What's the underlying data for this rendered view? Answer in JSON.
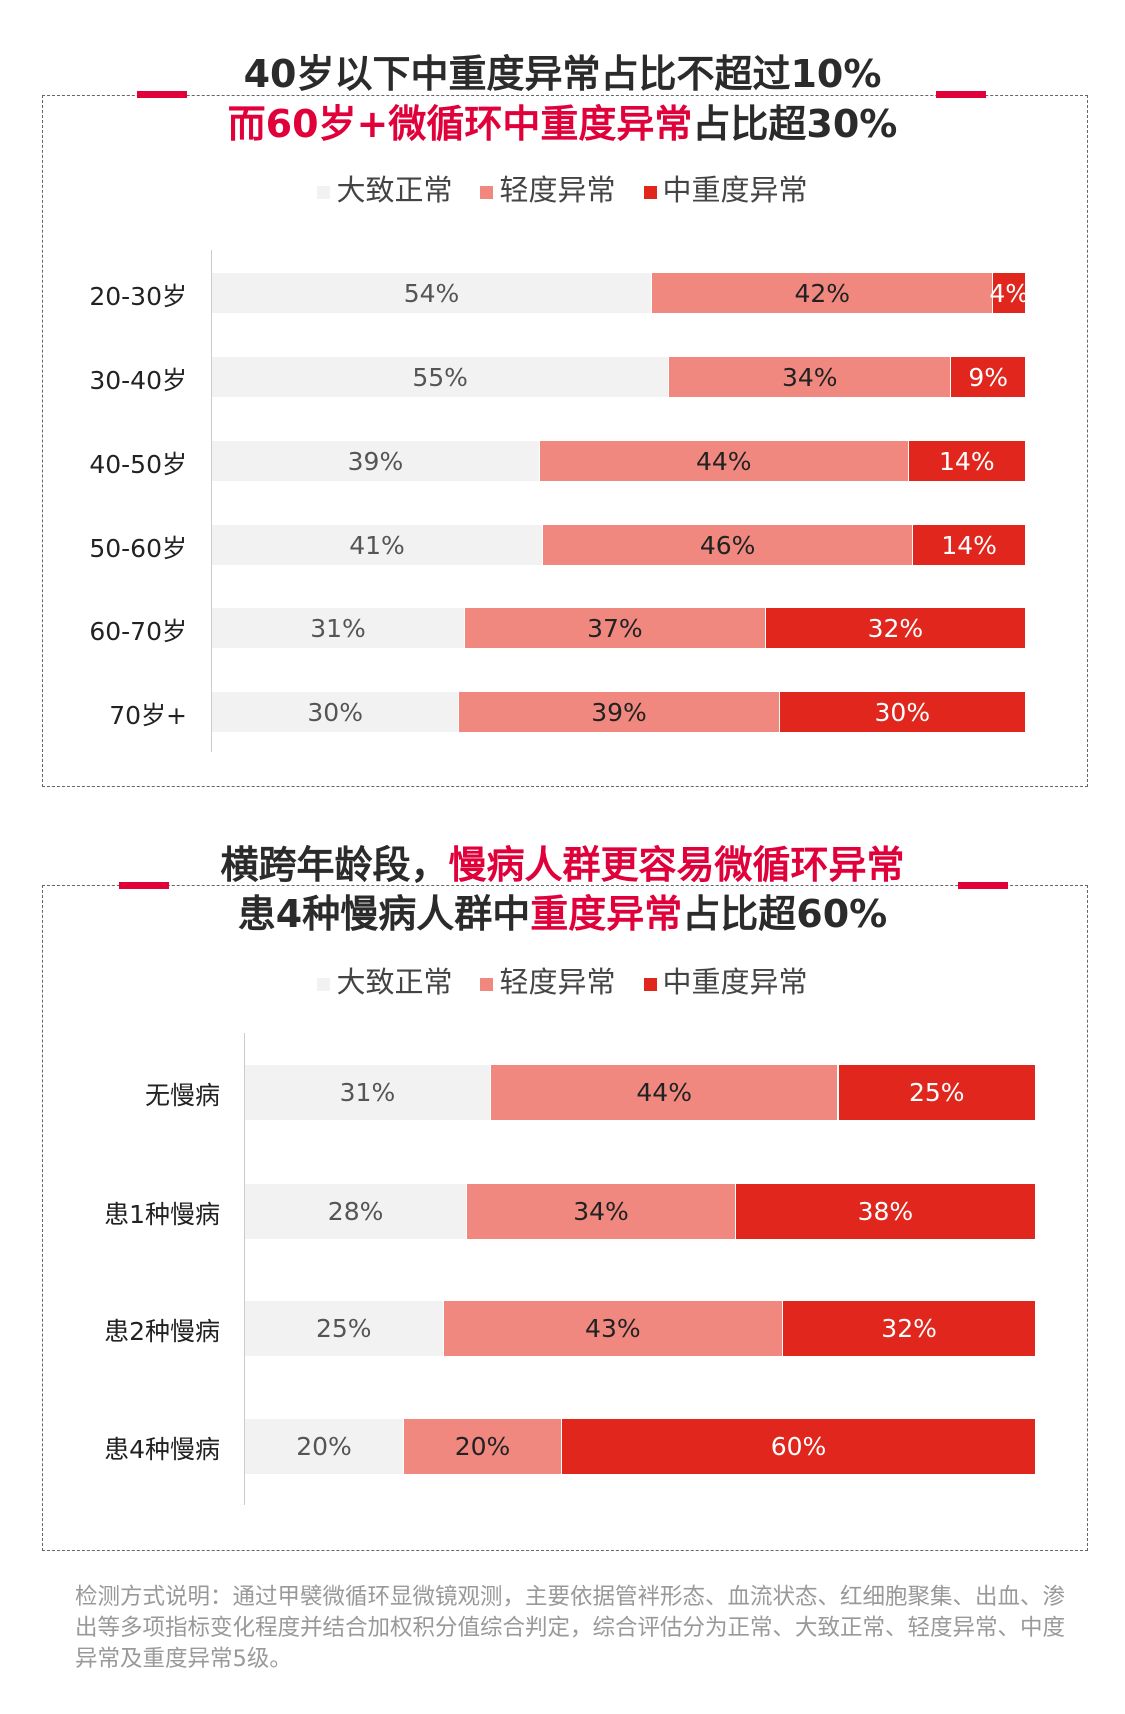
{
  "colors": {
    "normal": "#f2f2f2",
    "mild": "#f08880",
    "severe": "#e0261d",
    "title_red": "#e0003a"
  },
  "chart_data": [
    {
      "type": "bar",
      "orientation": "horizontal",
      "stacked": true,
      "title_lines": [
        [
          {
            "text": "40岁以下中重度异常占比不超过10%",
            "red": false
          }
        ],
        [
          {
            "text": "而60岁+微循环中重度异常",
            "red": true
          },
          {
            "text": "占比超30%",
            "red": false
          }
        ]
      ],
      "legend": [
        "大致正常",
        "轻度异常",
        "中重度异常"
      ],
      "legend_placement": "top",
      "categories": [
        "20-30岁",
        "30-40岁",
        "40-50岁",
        "50-60岁",
        "60-70岁",
        "70岁+"
      ],
      "series": [
        {
          "name": "大致正常",
          "values": [
            54,
            55,
            39,
            41,
            31,
            30
          ]
        },
        {
          "name": "轻度异常",
          "values": [
            42,
            34,
            44,
            46,
            37,
            39
          ]
        },
        {
          "name": "中重度异常",
          "values": [
            4,
            9,
            14,
            14,
            32,
            30
          ]
        }
      ],
      "unit": "%"
    },
    {
      "type": "bar",
      "orientation": "horizontal",
      "stacked": true,
      "title_lines": [
        [
          {
            "text": "横跨年龄段，",
            "red": false
          },
          {
            "text": "慢病人群更容易微循环异常",
            "red": true
          }
        ],
        [
          {
            "text": "患4种慢病人群中",
            "red": false
          },
          {
            "text": "重度异常",
            "red": true
          },
          {
            "text": "占比超60%",
            "red": false
          }
        ]
      ],
      "legend": [
        "大致正常",
        "轻度异常",
        "中重度异常"
      ],
      "legend_placement": "top",
      "categories": [
        "无慢病",
        "患1种慢病",
        "患2种慢病",
        "患4种慢病"
      ],
      "series": [
        {
          "name": "大致正常",
          "values": [
            31,
            28,
            25,
            20
          ]
        },
        {
          "name": "轻度异常",
          "values": [
            44,
            34,
            43,
            20
          ]
        },
        {
          "name": "中重度异常",
          "values": [
            25,
            38,
            32,
            60
          ]
        }
      ],
      "unit": "%"
    }
  ],
  "footnote": "检测方式说明：通过甲襞微循环显微镜观测，主要依据管袢形态、血流状态、红细胞聚集、出血、渗出等多项指标变化程度并结合加权积分值综合判定，综合评估分为正常、大致正常、轻度异常、中度异常及重度异常5级。"
}
